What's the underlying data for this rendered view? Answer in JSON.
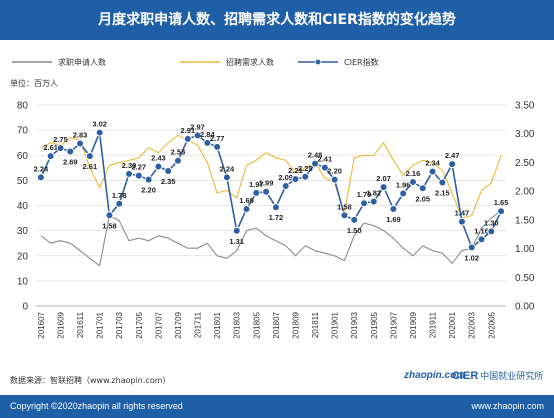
{
  "header": {
    "title": "月度求职申请人数、招聘需求人数和CIER指数的变化趋势"
  },
  "footer": {
    "source": "数据来源：智联招聘（www.zhaopin.com）",
    "copyright": "Copyright ©2020zhaopin all rights reserved",
    "website": "www.zhaopin.com",
    "logo_zhaopin": "zhaopin.com",
    "logo_cier": "CIER",
    "logo_cier_cn": "中国就业研究所"
  },
  "colors": {
    "applicants": "#8c8c8c",
    "demand": "#e8b93a",
    "cier": "#2e5fa3",
    "band": "#1f5fa8"
  },
  "chart_data": {
    "type": "line",
    "unit_label": "单位：百万人",
    "legend_position": "top",
    "grid": true,
    "y_left_ticks": [
      0,
      10,
      20,
      30,
      40,
      50,
      60,
      70,
      80
    ],
    "y_right_ticks": [
      "0.00",
      "0.50",
      "1.00",
      "1.50",
      "2.00",
      "2.50",
      "3.00",
      "3.50"
    ],
    "ylim_left": [
      0,
      80
    ],
    "ylim_right": [
      0,
      3.5
    ],
    "x_tick_labels": [
      "201607",
      "201609",
      "201611",
      "201701",
      "201703",
      "201705",
      "201707",
      "201709",
      "201711",
      "201801",
      "201803",
      "201805",
      "201807",
      "201809",
      "201811",
      "201901",
      "201903",
      "201905",
      "201907",
      "201909",
      "201911",
      "202001",
      "202003",
      "202005"
    ],
    "x": [
      "201607",
      "201608",
      "201609",
      "201610",
      "201611",
      "201612",
      "201701",
      "201702",
      "201703",
      "201704",
      "201705",
      "201706",
      "201707",
      "201708",
      "201709",
      "201710",
      "201711",
      "201712",
      "201801",
      "201802",
      "201803",
      "201804",
      "201805",
      "201806",
      "201807",
      "201808",
      "201809",
      "201810",
      "201811",
      "201812",
      "201901",
      "201902",
      "201903",
      "201904",
      "201905",
      "201906",
      "201907",
      "201908",
      "201909",
      "201910",
      "201911",
      "201912",
      "202001",
      "202002",
      "202003",
      "202004",
      "202005",
      "202006"
    ],
    "series": [
      {
        "name": "求职申请人数",
        "axis": "left",
        "values": [
          28,
          25,
          26,
          25,
          22,
          19,
          16,
          36,
          34,
          26,
          27,
          26,
          28,
          27,
          25,
          23,
          23,
          25,
          20,
          19,
          22,
          30,
          31,
          28,
          26,
          24,
          20,
          24,
          22,
          21,
          20,
          18,
          28,
          33,
          32,
          30,
          27,
          23,
          20,
          24,
          22,
          21,
          17,
          22,
          23,
          31,
          35,
          38
        ]
      },
      {
        "name": "招聘需求人数",
        "axis": "left",
        "values": [
          63,
          65,
          64,
          67,
          66,
          55,
          47,
          56,
          57,
          58,
          59,
          63,
          61,
          65,
          68,
          66,
          64,
          57,
          45,
          46,
          43,
          56,
          58,
          61,
          59,
          58,
          53,
          55,
          57,
          51,
          49,
          37,
          59,
          60,
          60,
          65,
          58,
          52,
          56,
          58,
          57,
          54,
          45,
          35,
          36,
          46,
          49,
          60
        ]
      },
      {
        "name": "CIER指数",
        "axis": "right",
        "values": [
          2.24,
          2.61,
          2.75,
          2.69,
          2.83,
          2.61,
          3.02,
          1.58,
          1.78,
          2.3,
          2.27,
          2.2,
          2.43,
          2.35,
          2.53,
          2.91,
          2.97,
          2.84,
          2.77,
          2.24,
          1.31,
          1.69,
          1.97,
          1.99,
          1.72,
          2.09,
          2.21,
          2.25,
          2.48,
          2.41,
          2.2,
          1.58,
          1.5,
          1.79,
          1.82,
          2.07,
          1.69,
          1.96,
          2.16,
          2.05,
          2.34,
          2.15,
          2.47,
          1.47,
          1.02,
          1.16,
          1.3,
          1.65
        ]
      }
    ]
  }
}
